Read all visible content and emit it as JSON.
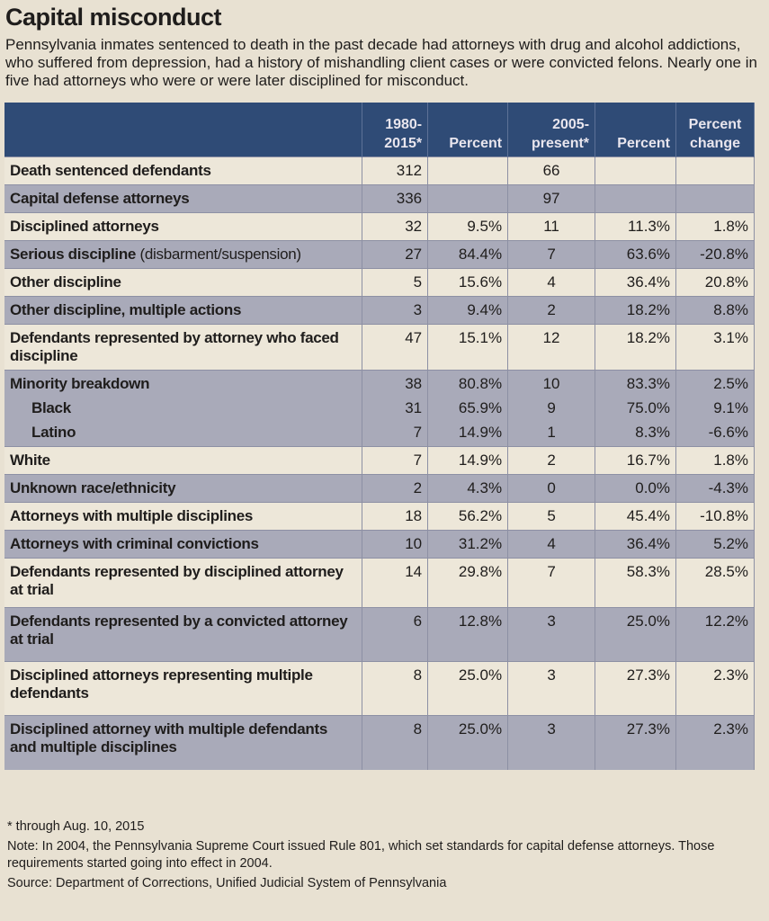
{
  "title": "Capital misconduct",
  "deck": "Pennsylvania inmates sentenced to death in the past decade had attorneys with drug and alcohol addictions, who suffered from depression, had a history of mishandling client cases or were convicted felons. Nearly one in five had attorneys who were or were later disciplined for misconduct.",
  "colors": {
    "header": "#2f4b76",
    "row_light": "#ede7d9",
    "row_gray": "#a9aab9"
  },
  "columns": [
    "",
    "1980-\n2015*",
    "Percent",
    "2005-\npresent*",
    "Percent",
    "Percent change"
  ],
  "rows": [
    {
      "label": "Death sentenced defendants",
      "extra": "",
      "shade": "light",
      "sub": false,
      "v": [
        "312",
        "",
        "66",
        "",
        ""
      ]
    },
    {
      "label": "Capital defense attorneys",
      "extra": "",
      "shade": "gray",
      "sub": false,
      "v": [
        "336",
        "",
        "97",
        "",
        ""
      ]
    },
    {
      "label": "Disciplined attorneys",
      "extra": "",
      "shade": "light",
      "sub": false,
      "v": [
        "32",
        "9.5%",
        "11",
        "11.3%",
        "1.8%"
      ]
    },
    {
      "label": "Serious discipline",
      "extra": " (disbarment/suspension)",
      "shade": "gray",
      "sub": false,
      "v": [
        "27",
        "84.4%",
        "7",
        "63.6%",
        "-20.8%"
      ]
    },
    {
      "label": "Other discipline",
      "extra": "",
      "shade": "light",
      "sub": false,
      "v": [
        "5",
        "15.6%",
        "4",
        "36.4%",
        "20.8%"
      ]
    },
    {
      "label": "Other discipline, multiple actions",
      "extra": "",
      "shade": "gray",
      "sub": false,
      "v": [
        "3",
        "9.4%",
        "2",
        "18.2%",
        "8.8%"
      ]
    },
    {
      "label": "Defendants represented by attorney who faced discipline",
      "extra": "",
      "shade": "light",
      "sub": false,
      "v": [
        "47",
        "15.1%",
        "12",
        "18.2%",
        "3.1%"
      ]
    },
    {
      "label": "Minority breakdown",
      "extra": "",
      "shade": "gray",
      "sub": false,
      "v": [
        "38",
        "80.8%",
        "10",
        "83.3%",
        "2.5%"
      ]
    },
    {
      "label": "Black",
      "extra": "",
      "shade": "gray",
      "sub": true,
      "v": [
        "31",
        "65.9%",
        "9",
        "75.0%",
        "9.1%"
      ]
    },
    {
      "label": "Latino",
      "extra": "",
      "shade": "gray",
      "sub": true,
      "v": [
        "7",
        "14.9%",
        "1",
        "8.3%",
        "-6.6%"
      ]
    },
    {
      "label": "White",
      "extra": "",
      "shade": "light",
      "sub": false,
      "v": [
        "7",
        "14.9%",
        "2",
        "16.7%",
        "1.8%"
      ]
    },
    {
      "label": "Unknown race/ethnicity",
      "extra": "",
      "shade": "gray",
      "sub": false,
      "v": [
        "2",
        "4.3%",
        "0",
        "0.0%",
        "-4.3%"
      ]
    },
    {
      "label": "Attorneys with multiple disciplines",
      "extra": "",
      "shade": "light",
      "sub": false,
      "v": [
        "18",
        "56.2%",
        "5",
        "45.4%",
        "-10.8%"
      ]
    },
    {
      "label": "Attorneys with criminal convictions",
      "extra": "",
      "shade": "gray",
      "sub": false,
      "v": [
        "10",
        "31.2%",
        "4",
        "36.4%",
        "5.2%"
      ]
    },
    {
      "label": "Defendants represented by disciplined attorney at trial",
      "extra": "",
      "shade": "light",
      "sub": false,
      "v": [
        "14",
        "29.8%",
        "7",
        "58.3%",
        "28.5%"
      ]
    },
    {
      "label": "Defendants represented by a convicted attorney at trial",
      "extra": "",
      "shade": "gray",
      "sub": false,
      "v": [
        "6",
        "12.8%",
        "3",
        "25.0%",
        "12.2%"
      ]
    },
    {
      "label": "Disciplined attorneys representing multiple defendants",
      "extra": "",
      "shade": "light",
      "sub": false,
      "v": [
        "8",
        "25.0%",
        "3",
        "27.3%",
        "2.3%"
      ]
    },
    {
      "label": "Disciplined attorney with multiple defendants and multiple disciplines",
      "extra": "",
      "shade": "gray",
      "sub": false,
      "v": [
        "8",
        "25.0%",
        "3",
        "27.3%",
        "2.3%"
      ]
    }
  ],
  "footnotes": {
    "asterisk": "* through Aug. 10, 2015",
    "note": "Note: In 2004, the Pennsylvania Supreme Court issued Rule 801, which set standards for capital defense attorneys. Those requirements started going into effect in 2004.",
    "source": "Source: Department of Corrections, Unified Judicial System of Pennsylvania"
  }
}
